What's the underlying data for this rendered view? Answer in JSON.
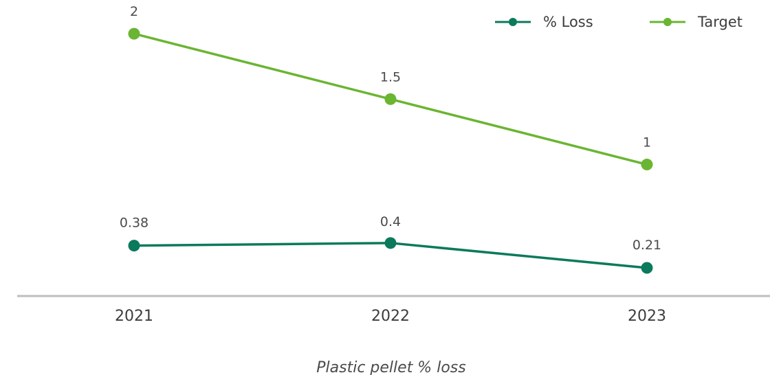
{
  "chart_data": {
    "type": "line",
    "categories": [
      "2021",
      "2022",
      "2023"
    ],
    "series": [
      {
        "name": "% Loss",
        "values": [
          0.38,
          0.4,
          0.21
        ],
        "color": "#0b7a5c"
      },
      {
        "name": "Target",
        "values": [
          2,
          1.5,
          1
        ],
        "color": "#6ab532"
      }
    ],
    "title": "",
    "caption": "Plastic pellet % loss",
    "xlabel": "",
    "ylabel": "",
    "ylim": [
      0.0,
      2.2
    ],
    "grid": false,
    "legend_position": "top-right",
    "axis_color": "#bdbdbd"
  }
}
